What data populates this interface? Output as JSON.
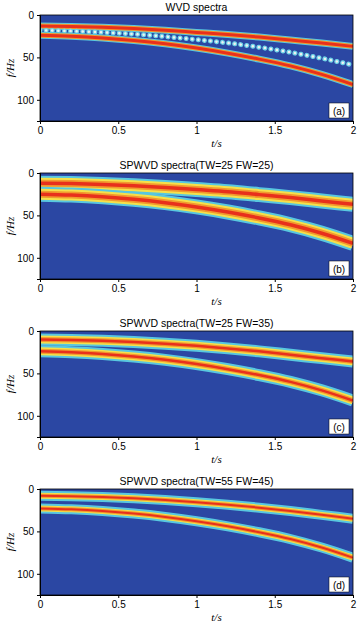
{
  "chart_data": [
    {
      "type": "line",
      "title": "WVD spectra",
      "x_label": "t/s",
      "y_label": "f/Hz",
      "annotation": "(a)",
      "xlim": [
        0,
        2
      ],
      "ylim": [
        0,
        125
      ],
      "xticks": [
        0,
        0.5,
        1,
        1.5,
        2
      ],
      "yticks": [
        0,
        50,
        100
      ],
      "grid": false,
      "x": [
        0,
        0.2,
        0.4,
        0.6,
        0.8,
        1.0,
        1.2,
        1.4,
        1.6,
        1.8,
        2.0
      ],
      "series": [
        {
          "color": "#e8301c",
          "line_style": "solid",
          "values": [
            13,
            13.5,
            14.5,
            16,
            18,
            20.5,
            23,
            26,
            29.5,
            33,
            37
          ]
        },
        {
          "color": "#f0f0f0",
          "line_style": "dotted",
          "values": [
            18,
            19,
            20.5,
            22.5,
            25.5,
            29,
            33,
            38,
            44,
            51,
            59
          ]
        },
        {
          "color": "#e8301c",
          "line_style": "solid",
          "values": [
            24,
            25,
            27,
            30,
            34,
            39,
            45,
            52,
            60,
            70,
            82
          ]
        }
      ]
    },
    {
      "type": "line",
      "title": "SPWVD spectra(TW=25 FW=25)",
      "x_label": "t/s",
      "y_label": "f/Hz",
      "annotation": "(b)",
      "xlim": [
        0,
        2
      ],
      "ylim": [
        0,
        125
      ],
      "xticks": [
        0,
        0.5,
        1,
        1.5,
        2
      ],
      "yticks": [
        0,
        50,
        100
      ],
      "grid": false,
      "x": [
        0,
        0.2,
        0.4,
        0.6,
        0.8,
        1.0,
        1.2,
        1.4,
        1.6,
        1.8,
        2.0
      ],
      "series": [
        {
          "color": "#e8301c",
          "line_style": "solid",
          "values": [
            12,
            12.5,
            13.5,
            15,
            17,
            19.5,
            22,
            25.5,
            29,
            33,
            37
          ]
        },
        {
          "color": "#e8301c",
          "line_style": "solid",
          "values": [
            25,
            26,
            28,
            31,
            35,
            40,
            46,
            53,
            61,
            71,
            83
          ]
        }
      ]
    },
    {
      "type": "line",
      "title": "SPWVD spectra(TW=25 FW=35)",
      "x_label": "t/s",
      "y_label": "f/Hz",
      "annotation": "(c)",
      "xlim": [
        0,
        2
      ],
      "ylim": [
        0,
        125
      ],
      "xticks": [
        0,
        0.5,
        1,
        1.5,
        2
      ],
      "yticks": [
        0,
        50,
        100
      ],
      "grid": false,
      "x": [
        0,
        0.2,
        0.4,
        0.6,
        0.8,
        1.0,
        1.2,
        1.4,
        1.6,
        1.8,
        2.0
      ],
      "series": [
        {
          "color": "#e8301c",
          "line_style": "solid",
          "values": [
            10,
            10.5,
            11.5,
            13,
            15,
            17.5,
            20.5,
            24,
            28,
            32,
            36
          ]
        },
        {
          "color": "#e8301c",
          "line_style": "solid",
          "values": [
            24,
            25,
            27,
            30,
            34,
            39,
            45,
            52,
            60,
            70,
            82
          ]
        }
      ]
    },
    {
      "type": "line",
      "title": "SPWVD spectra(TW=55 FW=45)",
      "x_label": "t/s",
      "y_label": "f/Hz",
      "annotation": "(d)",
      "xlim": [
        0,
        2
      ],
      "ylim": [
        0,
        125
      ],
      "xticks": [
        0,
        0.5,
        1,
        1.5,
        2
      ],
      "yticks": [
        0,
        50,
        100
      ],
      "grid": false,
      "x": [
        0,
        0.2,
        0.4,
        0.6,
        0.8,
        1.0,
        1.2,
        1.4,
        1.6,
        1.8,
        2.0
      ],
      "series": [
        {
          "color": "#e8301c",
          "line_style": "solid",
          "values": [
            8,
            8.5,
            9.5,
            11,
            13,
            15.5,
            18.5,
            22,
            26,
            30.5,
            35
          ]
        },
        {
          "color": "#e8301c",
          "line_style": "solid",
          "values": [
            23,
            24,
            26,
            29,
            33,
            38,
            44,
            51,
            59,
            69,
            81
          ]
        }
      ]
    }
  ]
}
